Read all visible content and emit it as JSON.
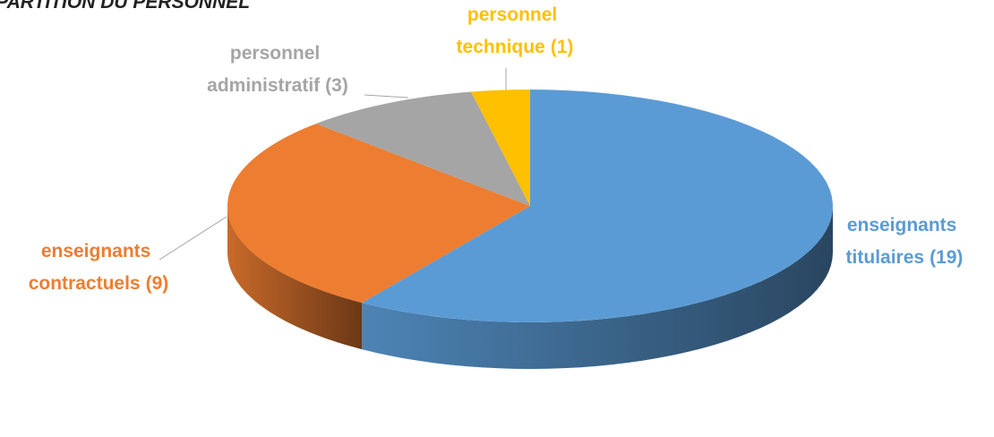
{
  "chart_data": {
    "type": "pie3d",
    "title": "RÉPARTITION DU PERSONNEL",
    "categories": [
      "enseignants titulaires",
      "enseignants contractuels",
      "personnel administratif",
      "personnel technique"
    ],
    "values": [
      19,
      9,
      3,
      1
    ],
    "value_labels": [
      "(19)",
      "(9)",
      "(3)",
      "(1)"
    ],
    "colors": [
      "#5b9bd5",
      "#ed7d31",
      "#a5a5a5",
      "#ffc000"
    ]
  }
}
